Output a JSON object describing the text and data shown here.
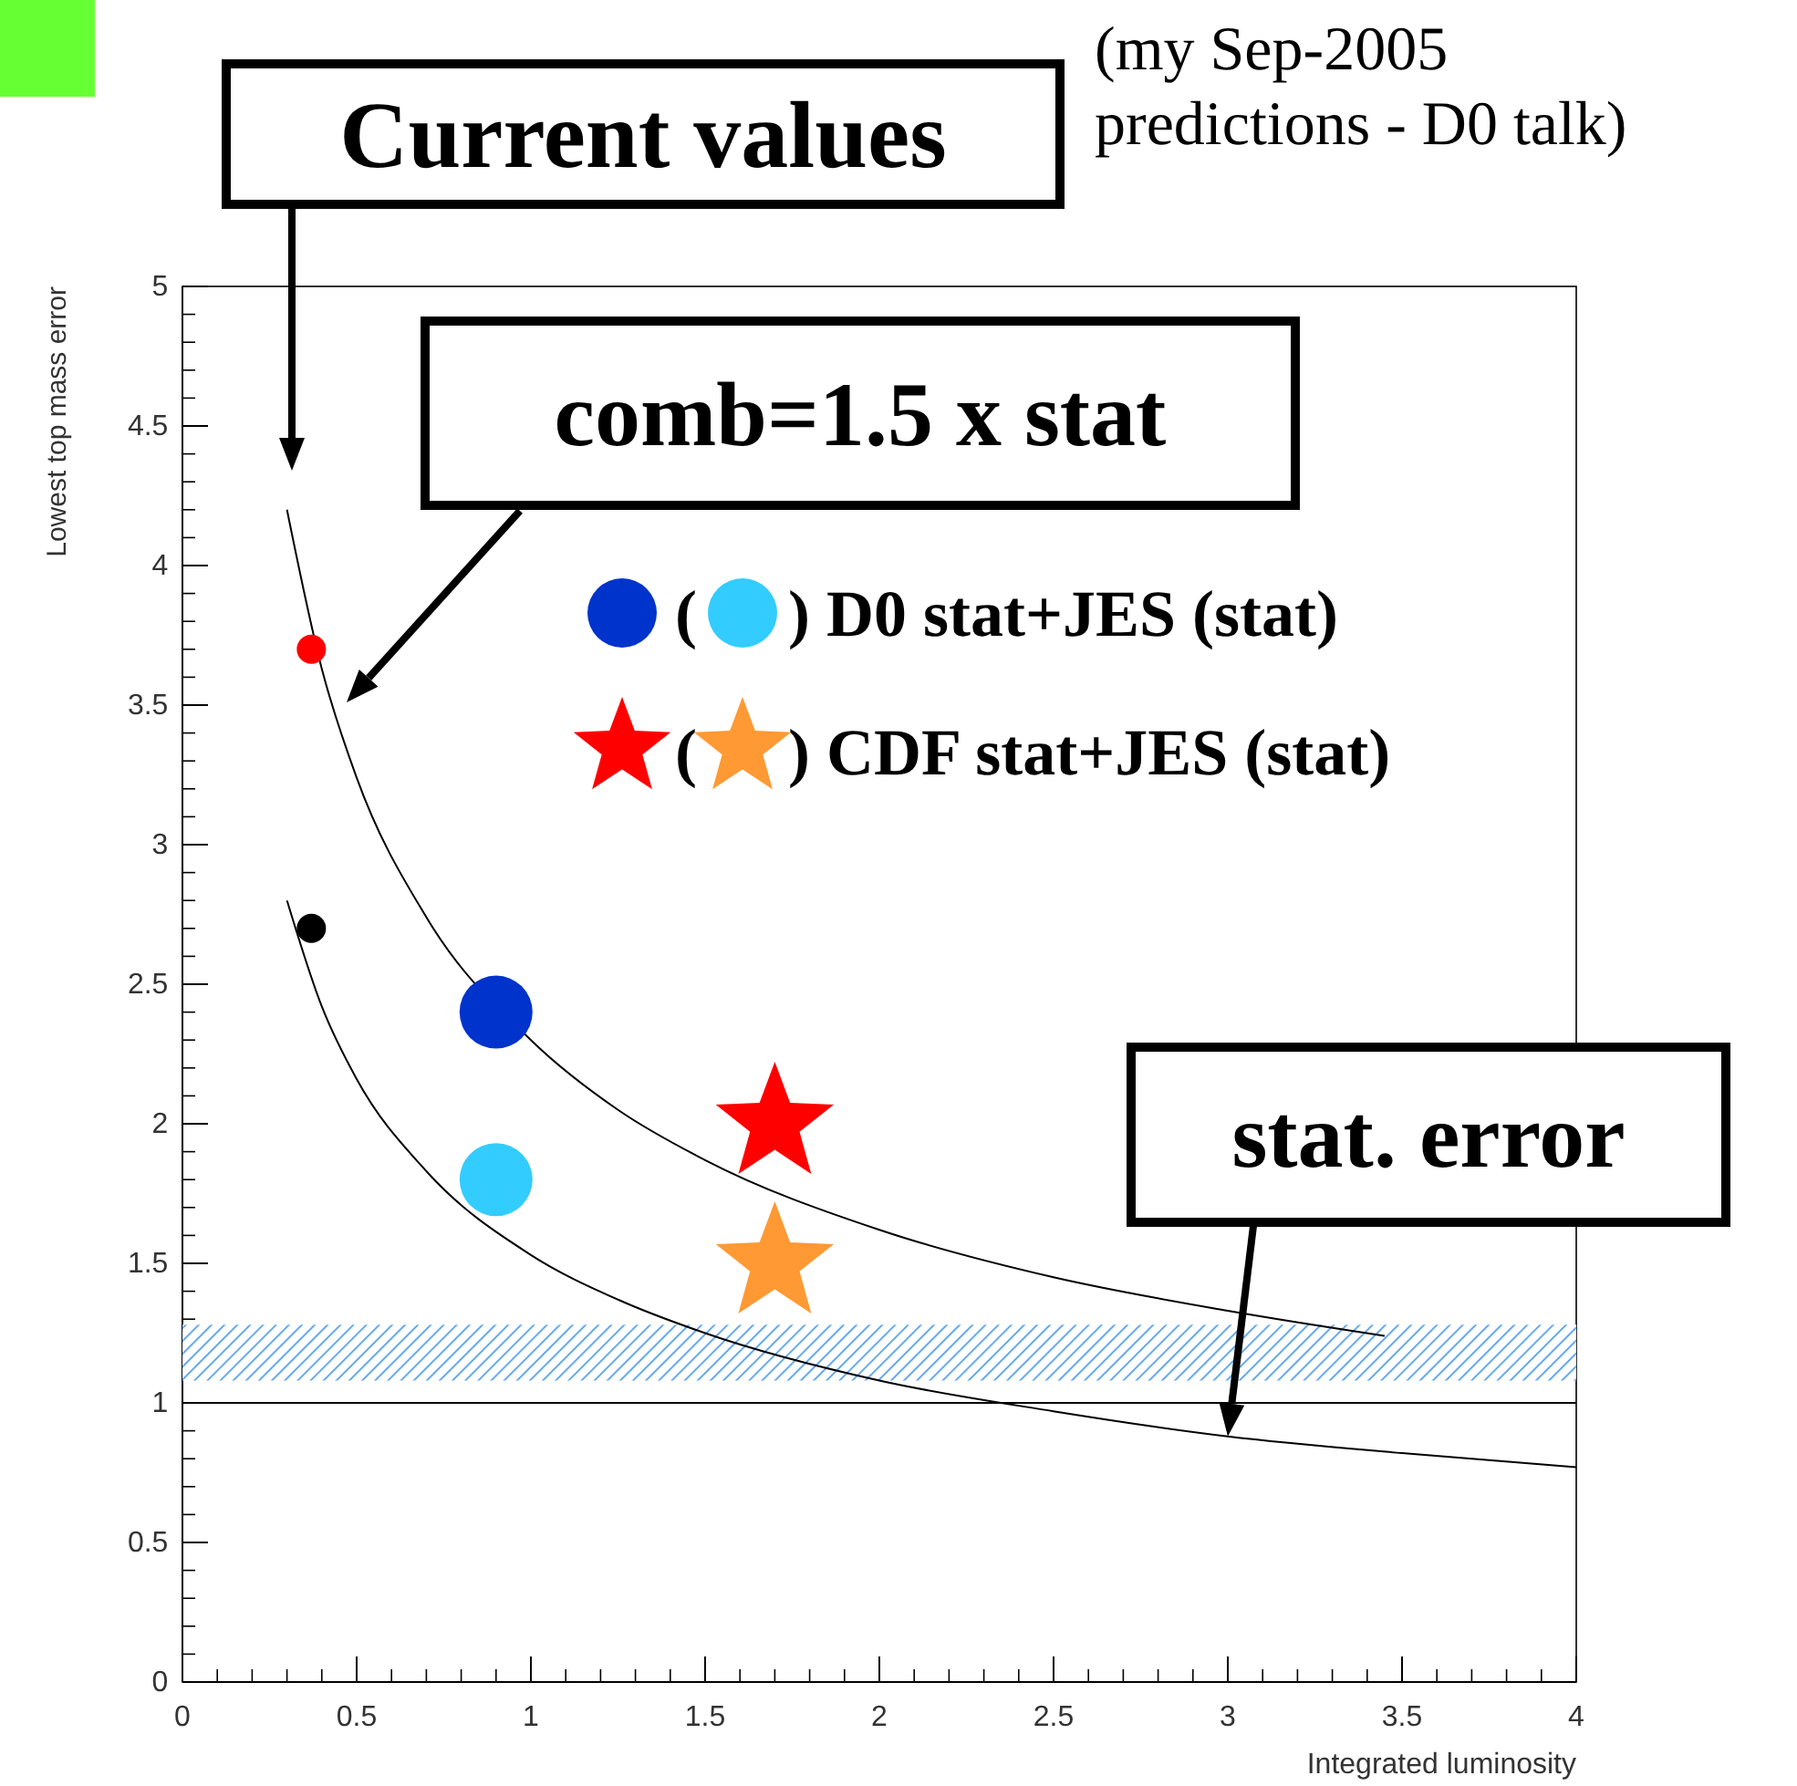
{
  "chart_data": {
    "type": "line",
    "xlabel": "Integrated luminosity",
    "ylabel": "Lowest top mass error",
    "xlim": [
      0,
      4
    ],
    "ylim": [
      0,
      5
    ],
    "xticks": [
      0,
      0.5,
      1,
      1.5,
      2,
      2.5,
      3,
      3.5,
      4
    ],
    "yticks": [
      0,
      0.5,
      1,
      1.5,
      2,
      2.5,
      3,
      3.5,
      4,
      4.5,
      5
    ],
    "series": [
      {
        "color": "#000000",
        "marker": "none",
        "x": [
          0.3,
          0.4,
          0.5,
          0.7,
          1,
          1.25,
          1.5,
          2,
          2.5,
          3,
          3.45
        ],
        "values": [
          4.2,
          3.63,
          3.24,
          2.74,
          2.3,
          2.05,
          1.87,
          1.62,
          1.45,
          1.33,
          1.24
        ]
      },
      {
        "color": "#000000",
        "marker": "none",
        "x": [
          0.3,
          0.4,
          0.5,
          0.7,
          1,
          1.25,
          1.5,
          2,
          2.5,
          3,
          3.5,
          4
        ],
        "values": [
          2.8,
          2.42,
          2.16,
          1.83,
          1.53,
          1.37,
          1.25,
          1.08,
          0.97,
          0.88,
          0.82,
          0.77
        ]
      },
      {
        "type": "bubble",
        "marker": "circle",
        "x": [
          0.37,
          0.37,
          0.9,
          0.9
        ],
        "values": [
          3.7,
          2.7,
          2.4,
          1.8
        ],
        "sizes": [
          0.16,
          0.16,
          1,
          1
        ],
        "colors": [
          "#ff0000",
          "#000000",
          "#0033cc",
          "#33ccff"
        ]
      },
      {
        "type": "scatter",
        "marker": "star",
        "x": [
          1.7,
          1.7
        ],
        "values": [
          2.0,
          1.5
        ],
        "colors": [
          "#ff0000",
          "#ff9933"
        ]
      }
    ],
    "ref_lines": [
      {
        "axis": "y",
        "value": 1,
        "color": "#000000"
      }
    ],
    "bands": [
      {
        "axis": "y",
        "from": 1.08,
        "to": 1.28,
        "color": "#66aaee"
      }
    ],
    "annotations": [
      "Current values",
      "comb=1.5 x stat",
      {
        "text": "stat. error",
        "x": 3,
        "y": 0.88
      },
      "(my Sep-2005 predictions - D0 talk)",
      "( ) D0 stat+JES (stat)",
      "( ) CDF stat+JES (stat)"
    ]
  }
}
